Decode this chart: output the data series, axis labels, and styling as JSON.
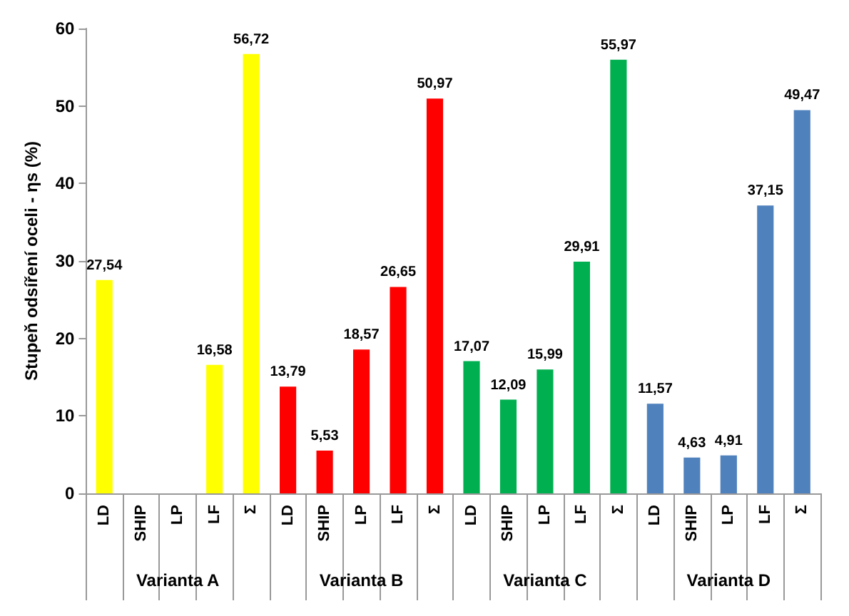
{
  "chart_data": {
    "type": "bar",
    "ylabel": "Stupeň odsíření oceli - ηs (%)",
    "categories": [
      "LD",
      "SHIP",
      "LP",
      "LF",
      "Σ",
      "LD",
      "SHIP",
      "LP",
      "LF",
      "Σ",
      "LD",
      "SHIP",
      "LP",
      "LF",
      "Σ",
      "LD",
      "SHIP",
      "LP",
      "LF",
      "Σ"
    ],
    "series": [
      {
        "name": "Varianta A",
        "color": "#ffff00",
        "values": [
          27.54,
          null,
          null,
          16.58,
          56.72,
          null,
          null,
          null,
          null,
          null,
          null,
          null,
          null,
          null,
          null,
          null,
          null,
          null,
          null,
          null
        ],
        "value_labels": [
          "27,54",
          null,
          null,
          "16,58",
          "56,72",
          null,
          null,
          null,
          null,
          null,
          null,
          null,
          null,
          null,
          null,
          null,
          null,
          null,
          null,
          null
        ]
      },
      {
        "name": "Varianta B",
        "color": "#ff0000",
        "values": [
          null,
          null,
          null,
          null,
          null,
          13.79,
          5.53,
          18.57,
          26.65,
          50.97,
          null,
          null,
          null,
          null,
          null,
          null,
          null,
          null,
          null,
          null
        ],
        "value_labels": [
          null,
          null,
          null,
          null,
          null,
          "13,79",
          "5,53",
          "18,57",
          "26,65",
          "50,97",
          null,
          null,
          null,
          null,
          null,
          null,
          null,
          null,
          null,
          null
        ]
      },
      {
        "name": "Varianta C",
        "color": "#00b050",
        "values": [
          null,
          null,
          null,
          null,
          null,
          null,
          null,
          null,
          null,
          null,
          17.07,
          12.09,
          15.99,
          29.91,
          55.97,
          null,
          null,
          null,
          null,
          null
        ],
        "value_labels": [
          null,
          null,
          null,
          null,
          null,
          null,
          null,
          null,
          null,
          null,
          "17,07",
          "12,09",
          "15,99",
          "29,91",
          "55,97",
          null,
          null,
          null,
          null,
          null
        ]
      },
      {
        "name": "Varianta D",
        "color": "#4f81bd",
        "values": [
          null,
          null,
          null,
          null,
          null,
          null,
          null,
          null,
          null,
          null,
          null,
          null,
          null,
          null,
          null,
          11.57,
          4.63,
          4.91,
          37.15,
          49.47
        ],
        "value_labels": [
          null,
          null,
          null,
          null,
          null,
          null,
          null,
          null,
          null,
          null,
          null,
          null,
          null,
          null,
          null,
          "11,57",
          "4,63",
          "4,91",
          "37,15",
          "49,47"
        ]
      }
    ],
    "ylim": [
      0,
      60
    ],
    "yticks": [
      0,
      10,
      20,
      30,
      40,
      50,
      60
    ],
    "grid": false,
    "legend": false
  }
}
